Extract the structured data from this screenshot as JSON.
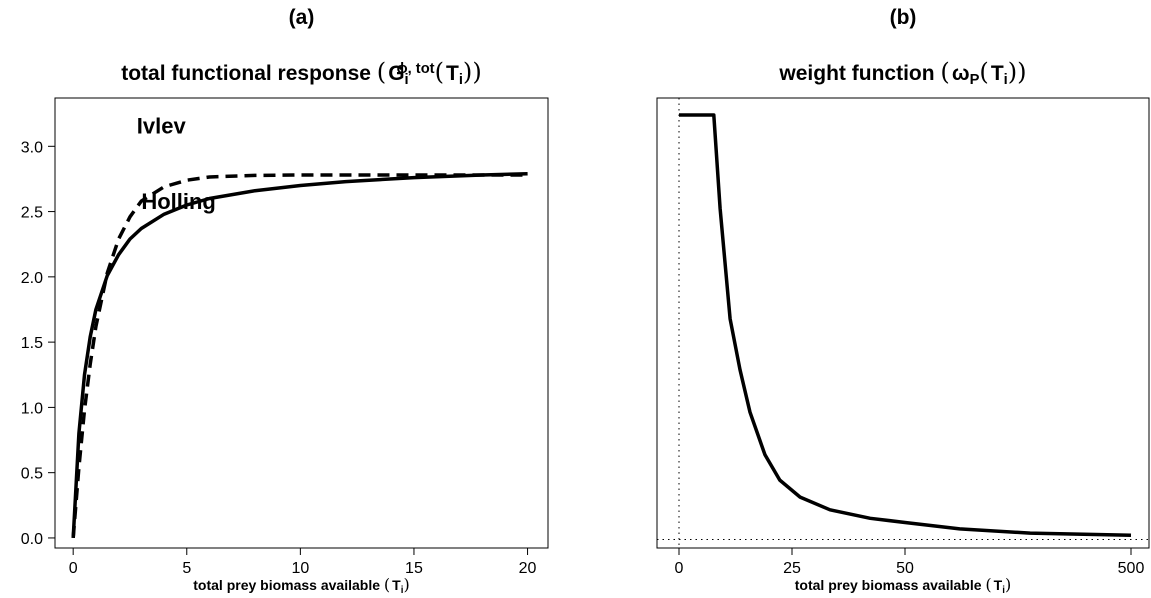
{
  "chart_data": [
    {
      "type": "line",
      "panel": "(a)",
      "title": "total functional response",
      "title_math": {
        "open": "(",
        "symbol": "G",
        "sub": "i",
        "sup": "ϕ, tot",
        "arg_open": "(",
        "arg": "T",
        "arg_sub": "i",
        "arg_close": ")",
        "close": ")"
      },
      "xlabel": "total prey biomass available",
      "xlabel_math": {
        "open": "(",
        "symbol": "T",
        "sub": "i",
        "close": ")"
      },
      "x": [
        0,
        0.25,
        0.5,
        0.75,
        1,
        1.5,
        2,
        2.5,
        3,
        4,
        5,
        6,
        8,
        10,
        12,
        15,
        18,
        20
      ],
      "series": [
        {
          "name": "Holling",
          "color": "#000000",
          "dashed": false,
          "values": [
            0,
            0.8,
            1.25,
            1.54,
            1.75,
            2.01,
            2.17,
            2.29,
            2.37,
            2.48,
            2.55,
            2.6,
            2.66,
            2.7,
            2.73,
            2.76,
            2.78,
            2.79
          ]
        },
        {
          "name": "Ivlev",
          "color": "#000000",
          "dashed": true,
          "values": [
            0,
            0.54,
            0.98,
            1.33,
            1.62,
            2.03,
            2.29,
            2.46,
            2.58,
            2.69,
            2.74,
            2.765,
            2.777,
            2.78,
            2.78,
            2.78,
            2.78,
            2.78
          ]
        }
      ],
      "annotations": [
        "Ivlev",
        "Holling"
      ],
      "xlim": [
        -0.8,
        20.9
      ],
      "xticks": [
        0,
        5,
        10,
        15,
        20
      ],
      "ylim": [
        -0.077,
        3.37
      ],
      "yticks": [
        {
          "value": 0,
          "label": "0.0"
        },
        0.5,
        {
          "value": 1,
          "label": "1.0"
        },
        1.5,
        {
          "value": 2,
          "label": "2.0"
        },
        2.5,
        {
          "value": 3,
          "label": "3.0"
        }
      ]
    },
    {
      "type": "line",
      "panel": "(b)",
      "title": "weight function",
      "title_math": {
        "open": "(",
        "symbol": "ω",
        "sub": "P",
        "arg_open": "(",
        "arg": "T",
        "arg_sub": "i",
        "arg_close": ")",
        "close": ")"
      },
      "xlabel": "total prey biomass available",
      "xlabel_math": {
        "open": "(",
        "symbol": "T",
        "sub": "i",
        "close": ")"
      },
      "x_scale": "piecewise",
      "x": [
        0,
        7.7,
        9.1,
        11.3,
        13.5,
        15.7,
        19.0,
        22.3,
        26.8,
        33.4,
        42.3,
        50,
        159,
        299,
        500
      ],
      "series": [
        {
          "name": "weight",
          "color": "#000000",
          "dashed": false,
          "values": [
            1,
            1,
            0.78,
            0.52,
            0.4,
            0.3,
            0.2,
            0.14,
            0.1,
            0.07,
            0.05,
            0.04,
            0.025,
            0.015,
            0.01
          ]
        }
      ],
      "reference_lines": {
        "x": 0,
        "y": 0
      },
      "xlim": [
        -5,
        509
      ],
      "xticks": [
        0,
        25,
        50,
        500
      ],
      "ylim": [
        -0.02,
        1.04
      ]
    }
  ]
}
